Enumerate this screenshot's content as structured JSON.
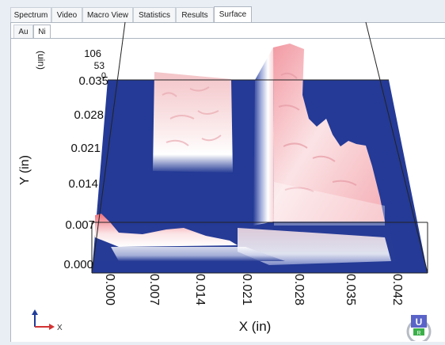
{
  "tabs": [
    {
      "label": "Spectrum",
      "active": false
    },
    {
      "label": "Video",
      "active": false
    },
    {
      "label": "Macro View",
      "active": false
    },
    {
      "label": "Statistics",
      "active": false
    },
    {
      "label": "Results",
      "active": false
    },
    {
      "label": "Surface",
      "active": true
    }
  ],
  "subtabs": [
    {
      "label": "Au",
      "active": false
    },
    {
      "label": "Ni",
      "active": true
    }
  ],
  "plot": {
    "z_axis": {
      "ticks": [
        "106",
        "53",
        "0"
      ],
      "label": "(uin)"
    },
    "y_axis": {
      "ticks": [
        "0.035",
        "0.028",
        "0.021",
        "0.014",
        "0.007",
        "0.000"
      ],
      "label": "Y (in)"
    },
    "x_axis": {
      "ticks": [
        "0.000",
        "0.007",
        "0.014",
        "0.021",
        "0.028",
        "0.035",
        "0.042"
      ],
      "label": "X (in)"
    },
    "orientation": {
      "x": "X"
    },
    "colors": {
      "base": "#243a96",
      "peak": "#ee5a6a",
      "white": "#ffffff"
    }
  },
  "badge": {
    "letter": "U",
    "sub": "R"
  }
}
